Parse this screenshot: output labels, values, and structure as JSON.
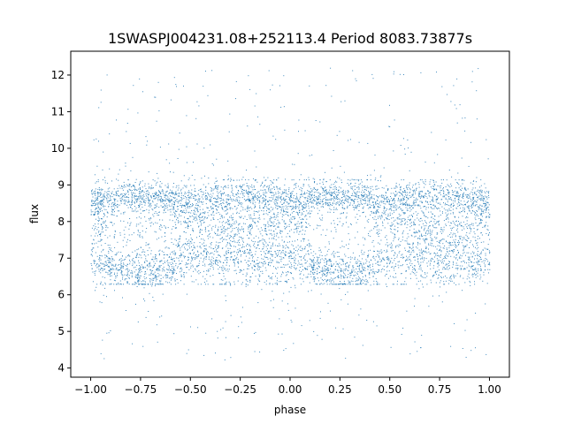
{
  "chart_data": {
    "type": "scatter",
    "title": "1SWASPJ004231.08+252113.4 Period 8083.73877s",
    "xlabel": "phase",
    "ylabel": "flux",
    "xlim": [
      -1.1,
      1.1
    ],
    "ylim": [
      3.75,
      12.65
    ],
    "xticks": [
      -1.0,
      -0.75,
      -0.5,
      -0.25,
      0.0,
      0.25,
      0.5,
      0.75,
      1.0
    ],
    "xtick_labels": [
      "−1.00",
      "−0.75",
      "−0.50",
      "−0.25",
      "0.00",
      "0.25",
      "0.50",
      "0.75",
      "1.00"
    ],
    "yticks": [
      4,
      5,
      6,
      7,
      8,
      9,
      10,
      11,
      12
    ],
    "ytick_labels": [
      "4",
      "5",
      "6",
      "7",
      "8",
      "9",
      "10",
      "11",
      "12"
    ],
    "grid": false,
    "point_color": "#1f77b4",
    "series": [
      {
        "phase_range": [
          -1.0,
          1.0
        ],
        "mean_flux": 7.85,
        "band_upper_flux": 9.0,
        "band_lower_flux": 6.5,
        "outlier_flux_range": [
          4.2,
          12.2
        ],
        "representative_points": [
          [
            -1.0,
            8.2
          ],
          [
            -0.9,
            8.6
          ],
          [
            -0.85,
            6.9
          ],
          [
            -0.75,
            8.1
          ],
          [
            -0.75,
            7.3
          ],
          [
            -0.7,
            6.6
          ],
          [
            -0.6,
            8.8
          ],
          [
            -0.5,
            7.9
          ],
          [
            -0.4,
            8.4
          ],
          [
            -0.25,
            8.3
          ],
          [
            -0.2,
            7.9
          ],
          [
            -0.1,
            8.3
          ],
          [
            0.0,
            8.2
          ],
          [
            0.1,
            8.6
          ],
          [
            0.15,
            6.9
          ],
          [
            0.25,
            8.1
          ],
          [
            0.25,
            7.3
          ],
          [
            0.3,
            6.6
          ],
          [
            0.4,
            8.8
          ],
          [
            0.5,
            7.9
          ],
          [
            0.6,
            8.4
          ],
          [
            0.75,
            8.3
          ],
          [
            0.8,
            7.9
          ],
          [
            0.9,
            8.3
          ],
          [
            1.0,
            8.2
          ],
          [
            -0.95,
            11.6
          ],
          [
            -0.3,
            4.3
          ],
          [
            0.2,
            12.2
          ],
          [
            0.6,
            4.4
          ],
          [
            0.85,
            11.2
          ]
        ]
      }
    ]
  }
}
